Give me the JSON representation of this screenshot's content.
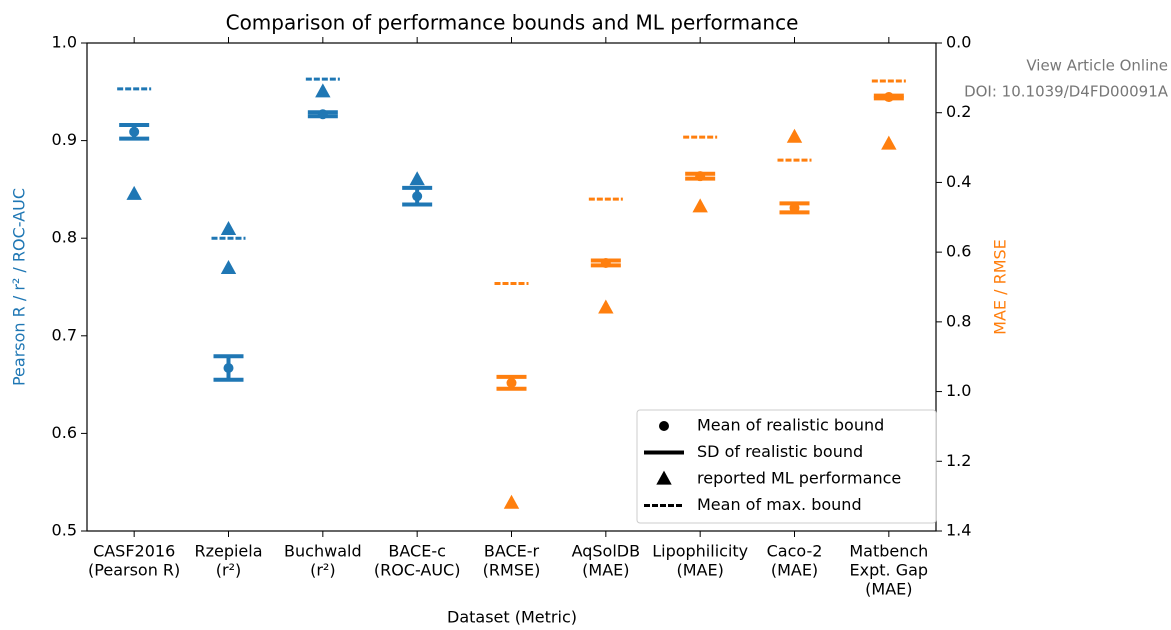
{
  "chart_data": {
    "type": "errorbar",
    "title": "Comparison of performance bounds and ML performance",
    "x_label": "Dataset (Metric)",
    "y_label": "Pearson R / r² / ROC-AUC",
    "y2_label": "MAE / RMSE",
    "categories": [
      [
        "CASF2016",
        "(Pearson R)"
      ],
      [
        "Rzepiela",
        "(r²)"
      ],
      [
        "Buchwald",
        "(r²)"
      ],
      [
        "BACE-c",
        "(ROC-AUC)"
      ],
      [
        "BACE-r",
        "(RMSE)"
      ],
      [
        "AqSolDB",
        "(MAE)"
      ],
      [
        "Lipophilicity",
        "(MAE)"
      ],
      [
        "Caco-2",
        "(MAE)"
      ],
      [
        "Matbench",
        "Expt. Gap",
        "(MAE)"
      ]
    ],
    "category_axis": [
      "y",
      "y",
      "y",
      "y",
      "y2",
      "y2",
      "y2",
      "y2",
      "y2"
    ],
    "axis_colors": {
      "y": "#1f77b4",
      "y2": "#ff7f0e"
    },
    "series": [
      {
        "name": "Mean of realistic bound",
        "marker": "dot",
        "values": [
          0.909,
          0.667,
          0.927,
          0.843,
          0.975,
          0.631,
          0.382,
          0.473,
          0.155
        ]
      },
      {
        "name": "SD of realistic bound",
        "marker": "sd",
        "values": [
          0.007,
          0.012,
          0.002,
          0.0085,
          0.017,
          0.007,
          0.007,
          0.013,
          0.004
        ]
      },
      {
        "name": "reported ML performance",
        "marker": "triangle",
        "values": [
          [
            0.845
          ],
          [
            0.809,
            0.769
          ],
          [
            0.95
          ],
          [
            0.86
          ],
          [
            1.32
          ],
          [
            0.76
          ],
          [
            0.47
          ],
          [
            0.27
          ],
          [
            0.29
          ]
        ]
      },
      {
        "name": "Mean of max. bound",
        "marker": "dash",
        "values": [
          0.953,
          0.8,
          0.963,
          null,
          0.69,
          0.448,
          0.27,
          0.336,
          0.109
        ]
      }
    ],
    "ylim": [
      0.5,
      1.0
    ],
    "yticks": [
      0.5,
      0.6,
      0.7,
      0.8,
      0.9,
      {
        "value": 1.0,
        "label": "1.0"
      }
    ],
    "y2lim": [
      0,
      1.4
    ],
    "y2inverted": true,
    "y2ticks": [
      {
        "value": 0,
        "label": "0.0"
      },
      0.2,
      0.4,
      0.6,
      0.8,
      {
        "value": 1.0,
        "label": "1.0"
      },
      1.2,
      1.4
    ],
    "legend": "lower right",
    "watermark": [
      "View Article Online",
      "DOI: 10.1039/D4FD00091A"
    ]
  }
}
